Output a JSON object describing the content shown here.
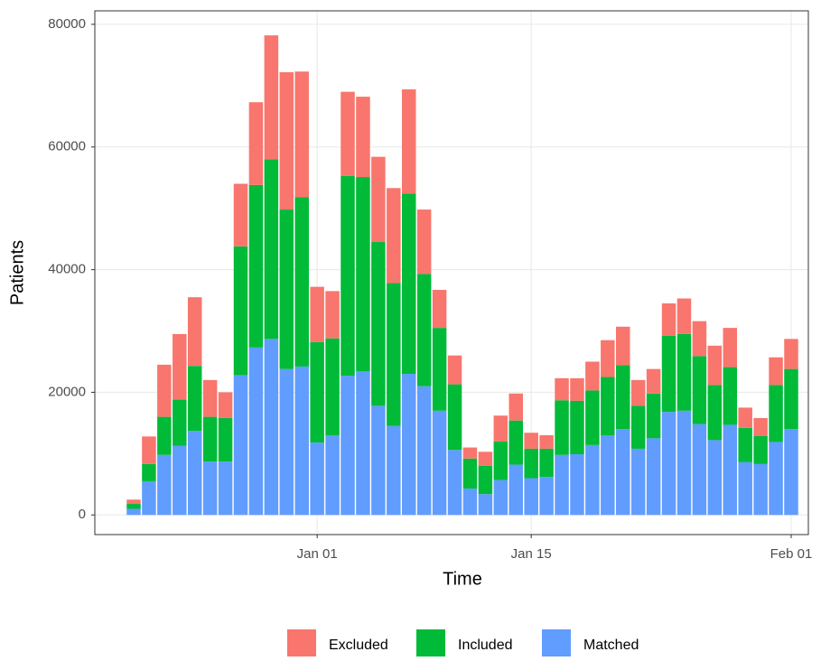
{
  "chart_data": {
    "type": "stacked_bar",
    "x_label": "Time",
    "y_label": "Patients",
    "x": [
      "Dec 20",
      "Dec 21",
      "Dec 22",
      "Dec 23",
      "Dec 24",
      "Dec 25",
      "Dec 26",
      "Dec 27",
      "Dec 28",
      "Dec 29",
      "Dec 30",
      "Dec 31",
      "Jan 01",
      "Jan 02",
      "Jan 03",
      "Jan 04",
      "Jan 05",
      "Jan 06",
      "Jan 07",
      "Jan 08",
      "Jan 09",
      "Jan 10",
      "Jan 11",
      "Jan 12",
      "Jan 13",
      "Jan 14",
      "Jan 15",
      "Jan 16",
      "Jan 17",
      "Jan 18",
      "Jan 19",
      "Jan 20",
      "Jan 21",
      "Jan 22",
      "Jan 23",
      "Jan 24",
      "Jan 25",
      "Jan 26",
      "Jan 27",
      "Jan 28",
      "Jan 29",
      "Jan 30",
      "Jan 31",
      "Feb 01"
    ],
    "xticks": [
      "Jan 01",
      "Jan 15",
      "Feb 01"
    ],
    "series": [
      {
        "name": "Excluded",
        "color": "#F8766D",
        "values": [
          700,
          4500,
          8500,
          10700,
          11200,
          6000,
          4200,
          10200,
          13500,
          20200,
          22400,
          20500,
          9000,
          7700,
          13700,
          13100,
          13900,
          15500,
          17000,
          10500,
          6200,
          4700,
          1800,
          2300,
          4200,
          4400,
          2600,
          2200,
          3600,
          3700,
          4700,
          6000,
          6300,
          4200,
          4000,
          5300,
          5800,
          5700,
          6400,
          6400,
          3300,
          2900,
          4500,
          4900
        ]
      },
      {
        "name": "Included",
        "color": "#00BA38",
        "values": [
          800,
          2800,
          6200,
          7500,
          10600,
          7300,
          7100,
          21000,
          26500,
          29300,
          26000,
          27600,
          16400,
          15800,
          32600,
          31700,
          26700,
          23300,
          29400,
          18300,
          13500,
          10700,
          4900,
          4600,
          6300,
          7200,
          4800,
          4600,
          8900,
          8700,
          8900,
          9500,
          10400,
          7000,
          7300,
          12400,
          12500,
          11100,
          9000,
          9400,
          5600,
          4600,
          9300,
          9800
        ]
      },
      {
        "name": "Matched",
        "color": "#619CFF",
        "values": [
          1000,
          5500,
          9800,
          11300,
          13700,
          8700,
          8700,
          22800,
          27300,
          28700,
          23800,
          24200,
          11800,
          13000,
          22700,
          23400,
          17800,
          14500,
          23000,
          21000,
          17000,
          10600,
          4300,
          3400,
          5700,
          8200,
          6000,
          6200,
          9800,
          9900,
          11400,
          13000,
          14000,
          10800,
          12500,
          16800,
          17000,
          14800,
          12200,
          14700,
          8600,
          8300,
          11900,
          14000
        ]
      }
    ],
    "ylim": [
      -3200,
      82200
    ],
    "yticks": [
      0,
      20000,
      40000,
      60000,
      80000
    ],
    "grid": true,
    "legend": "bottom"
  }
}
